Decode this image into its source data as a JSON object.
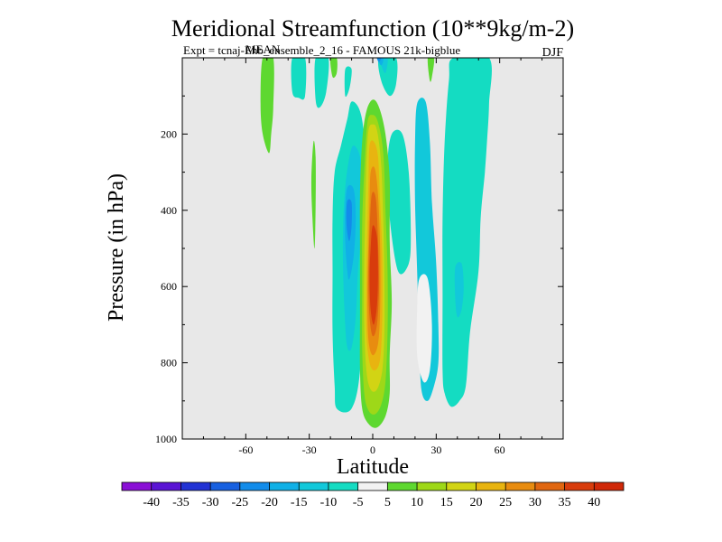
{
  "chart_data": {
    "type": "heatmap",
    "title": "Meridional Streamfunction (10**9kg/m-2)",
    "subtitle_left": "Expt = tcnaj-Ehb_ensemble_2_16 - FAMOUS 21k-bigblue",
    "subtitle_overlap": "MEAN",
    "subtitle_right": "DJF",
    "xlabel": "Latitude",
    "ylabel": "Pressure (in hPa)",
    "xlim": [
      -90,
      90
    ],
    "ylim": [
      1000,
      0
    ],
    "xticks": [
      -60,
      -30,
      0,
      30,
      60
    ],
    "xtick_labels": [
      "-60",
      "-30",
      "0",
      "30",
      "60"
    ],
    "yticks": [
      200,
      400,
      600,
      800,
      1000
    ],
    "ytick_labels": [
      "200",
      "400",
      "600",
      "800",
      "1000"
    ],
    "background_color": "#e8e8e8",
    "colorbar": {
      "bins": [
        "#8a10d6",
        "#5a14d4",
        "#2233d4",
        "#1760e0",
        "#128cea",
        "#10b0e6",
        "#12c8da",
        "#14dcc2",
        "#f2f2f2",
        "#5ed830",
        "#9ed818",
        "#d2d414",
        "#e8b410",
        "#e88c10",
        "#e06610",
        "#d83c0c"
      ],
      "labels": [
        "-40",
        "-35",
        "-30",
        "-25",
        "-20",
        "-15",
        "-10",
        "-5",
        "5",
        "10",
        "15",
        "20",
        "25",
        "30",
        "35",
        "40"
      ]
    },
    "contours": [
      {
        "level": 10,
        "color": "#5ed830",
        "points": [
          [
            -52,
            0
          ],
          [
            -47,
            0
          ],
          [
            -47,
            130
          ],
          [
            -48,
            200
          ],
          [
            -49,
            250
          ],
          [
            -52,
            200
          ],
          [
            -53,
            120
          ]
        ]
      },
      {
        "level": -5,
        "color": "#14dcc2",
        "points": [
          [
            -38,
            0
          ],
          [
            -32,
            0
          ],
          [
            -32,
            100
          ],
          [
            -35,
            105
          ],
          [
            -38,
            90
          ]
        ]
      },
      {
        "level": -5,
        "color": "#14dcc2",
        "points": [
          [
            -27,
            0
          ],
          [
            -21,
            0
          ],
          [
            -22,
            90
          ],
          [
            -25,
            130
          ],
          [
            -27,
            110
          ]
        ]
      },
      {
        "level": 10,
        "color": "#5ed830",
        "points": [
          [
            -20,
            0
          ],
          [
            -17,
            0
          ],
          [
            -17,
            40
          ],
          [
            -19,
            50
          ]
        ]
      },
      {
        "level": 10,
        "color": "#5ed830",
        "points": [
          [
            -28,
            220
          ],
          [
            -27,
            260
          ],
          [
            -27,
            390
          ],
          [
            -27.5,
            500
          ],
          [
            -28.5,
            420
          ],
          [
            -29,
            320
          ]
        ]
      },
      {
        "level": 10,
        "color": "#5ed830",
        "points": [
          [
            26,
            0
          ],
          [
            29,
            0
          ],
          [
            28,
            50
          ],
          [
            27,
            60
          ]
        ]
      },
      {
        "level": -5,
        "color": "#14dcc2",
        "points": [
          [
            -13,
            30
          ],
          [
            -10,
            30
          ],
          [
            -11,
            80
          ],
          [
            -13,
            100
          ]
        ]
      },
      {
        "level": -5,
        "color": "#14dcc2",
        "points": [
          [
            3,
            0
          ],
          [
            11,
            0
          ],
          [
            11,
            70
          ],
          [
            8,
            100
          ],
          [
            4,
            60
          ]
        ]
      },
      {
        "level": -10,
        "color": "#12c8da",
        "points": [
          [
            3,
            0
          ],
          [
            7,
            0
          ],
          [
            6,
            40
          ],
          [
            4,
            20
          ]
        ]
      },
      {
        "level": -15,
        "color": "#10b0e6",
        "points": [
          [
            2,
            0
          ],
          [
            5,
            0
          ],
          [
            4,
            20
          ]
        ]
      },
      {
        "level": -20,
        "color": "#128cea",
        "points": [
          [
            2,
            0
          ],
          [
            4,
            0
          ],
          [
            3,
            10
          ]
        ]
      },
      {
        "level": -5,
        "color": "#14dcc2",
        "points": [
          [
            -10,
            115
          ],
          [
            -6,
            140
          ],
          [
            -4,
            220
          ],
          [
            -4,
            380
          ],
          [
            -5,
            600
          ],
          [
            -6,
            820
          ],
          [
            -10,
            920
          ],
          [
            -17,
            920
          ],
          [
            -18,
            860
          ],
          [
            -19,
            720
          ],
          [
            -19,
            560
          ],
          [
            -19,
            420
          ],
          [
            -18,
            300
          ],
          [
            -15,
            230
          ],
          [
            -12,
            160
          ]
        ]
      },
      {
        "level": -5,
        "color": "#14dcc2",
        "points": [
          [
            9,
            200
          ],
          [
            14,
            200
          ],
          [
            17,
            300
          ],
          [
            18,
            460
          ],
          [
            17,
            540
          ],
          [
            12,
            560
          ],
          [
            8,
            420
          ],
          [
            7,
            280
          ]
        ]
      },
      {
        "level": -5,
        "color": "#14dcc2",
        "points": [
          [
            38,
            0
          ],
          [
            55,
            0
          ],
          [
            55,
            120
          ],
          [
            54,
            220
          ],
          [
            53,
            300
          ],
          [
            51,
            420
          ],
          [
            50,
            560
          ],
          [
            46,
            720
          ],
          [
            44,
            860
          ],
          [
            41,
            900
          ],
          [
            37,
            915
          ],
          [
            34,
            880
          ],
          [
            33,
            820
          ],
          [
            33,
            620
          ],
          [
            33,
            420
          ],
          [
            34,
            220
          ],
          [
            36,
            60
          ]
        ]
      },
      {
        "level": -10,
        "color": "#12c8da",
        "points": [
          [
            21,
            120
          ],
          [
            25,
            115
          ],
          [
            27,
            220
          ],
          [
            28,
            380
          ],
          [
            30,
            540
          ],
          [
            31,
            700
          ],
          [
            31,
            800
          ],
          [
            29,
            860
          ],
          [
            26,
            900
          ],
          [
            23,
            870
          ],
          [
            22,
            740
          ],
          [
            21,
            560
          ],
          [
            20,
            380
          ],
          [
            20,
            220
          ]
        ]
      },
      {
        "level": -10,
        "color": "#12c8da",
        "points": [
          [
            -9,
            230
          ],
          [
            -6,
            260
          ],
          [
            -5,
            340
          ],
          [
            -5,
            440
          ],
          [
            -7,
            560
          ],
          [
            -8,
            680
          ],
          [
            -10,
            760
          ],
          [
            -12,
            760
          ],
          [
            -13,
            700
          ],
          [
            -14,
            560
          ],
          [
            -14,
            440
          ],
          [
            -13,
            340
          ],
          [
            -11,
            260
          ]
        ]
      },
      {
        "level": -15,
        "color": "#10b0e6",
        "points": [
          [
            -12,
            340
          ],
          [
            -9,
            345
          ],
          [
            -8,
            420
          ],
          [
            -9,
            520
          ],
          [
            -11,
            580
          ],
          [
            -12,
            560
          ],
          [
            -13,
            480
          ],
          [
            -13,
            400
          ]
        ]
      },
      {
        "level": -20,
        "color": "#128cea",
        "points": [
          [
            -12,
            375
          ],
          [
            -10,
            380
          ],
          [
            -10,
            440
          ],
          [
            -11,
            480
          ],
          [
            -12,
            460
          ],
          [
            -12.5,
            420
          ]
        ]
      },
      {
        "level": -10,
        "color": "#12c8da",
        "points": [
          [
            39,
            550
          ],
          [
            42,
            540
          ],
          [
            43,
            600
          ],
          [
            42,
            660
          ],
          [
            40,
            680
          ],
          [
            39,
            630
          ]
        ]
      },
      {
        "level": 5,
        "color": "#f2f2f2",
        "points": [
          [
            22,
            580
          ],
          [
            26,
            580
          ],
          [
            28,
            700
          ],
          [
            27,
            820
          ],
          [
            24,
            850
          ],
          [
            21,
            780
          ],
          [
            21,
            660
          ]
        ]
      },
      {
        "level": 10,
        "color": "#5ed830",
        "points": [
          [
            -3,
            140
          ],
          [
            0,
            110
          ],
          [
            3,
            130
          ],
          [
            6,
            200
          ],
          [
            8,
            320
          ],
          [
            8,
            480
          ],
          [
            9,
            640
          ],
          [
            8,
            780
          ],
          [
            8,
            880
          ],
          [
            6,
            940
          ],
          [
            2,
            970
          ],
          [
            -2,
            960
          ],
          [
            -5,
            920
          ],
          [
            -6,
            820
          ],
          [
            -6,
            680
          ],
          [
            -6,
            520
          ],
          [
            -6,
            360
          ],
          [
            -5,
            220
          ]
        ]
      },
      {
        "level": 15,
        "color": "#9ed818",
        "points": [
          [
            -2.5,
            170
          ],
          [
            0,
            150
          ],
          [
            2.5,
            170
          ],
          [
            5,
            250
          ],
          [
            6,
            400
          ],
          [
            7,
            560
          ],
          [
            7,
            720
          ],
          [
            6,
            850
          ],
          [
            4,
            910
          ],
          [
            1,
            935
          ],
          [
            -2,
            925
          ],
          [
            -4,
            880
          ],
          [
            -5,
            760
          ],
          [
            -5,
            600
          ],
          [
            -5,
            440
          ],
          [
            -4,
            300
          ]
        ]
      },
      {
        "level": 20,
        "color": "#d2d414",
        "points": [
          [
            -2,
            190
          ],
          [
            0,
            175
          ],
          [
            2,
            190
          ],
          [
            4,
            280
          ],
          [
            5,
            430
          ],
          [
            5.5,
            580
          ],
          [
            5.5,
            720
          ],
          [
            4.5,
            820
          ],
          [
            2,
            870
          ],
          [
            -1,
            870
          ],
          [
            -3,
            820
          ],
          [
            -4,
            700
          ],
          [
            -4,
            540
          ],
          [
            -3.5,
            400
          ],
          [
            -3,
            280
          ]
        ]
      },
      {
        "level": 25,
        "color": "#e8b410",
        "points": [
          [
            -1.5,
            230
          ],
          [
            0.5,
            220
          ],
          [
            2.5,
            260
          ],
          [
            3.5,
            380
          ],
          [
            4.5,
            520
          ],
          [
            4.5,
            680
          ],
          [
            3.5,
            790
          ],
          [
            1,
            820
          ],
          [
            -1.5,
            800
          ],
          [
            -3,
            720
          ],
          [
            -3,
            580
          ],
          [
            -2.5,
            440
          ],
          [
            -2,
            320
          ]
        ]
      },
      {
        "level": 30,
        "color": "#e88c10",
        "points": [
          [
            -1,
            300
          ],
          [
            1,
            290
          ],
          [
            2.5,
            360
          ],
          [
            3.5,
            500
          ],
          [
            3.5,
            660
          ],
          [
            2.5,
            750
          ],
          [
            0,
            780
          ],
          [
            -2,
            740
          ],
          [
            -2.5,
            620
          ],
          [
            -2,
            480
          ],
          [
            -1.5,
            380
          ]
        ]
      },
      {
        "level": 35,
        "color": "#e06610",
        "points": [
          [
            -0.5,
            360
          ],
          [
            1.5,
            370
          ],
          [
            2.5,
            480
          ],
          [
            3,
            600
          ],
          [
            2,
            700
          ],
          [
            0,
            730
          ],
          [
            -1.5,
            680
          ],
          [
            -2,
            580
          ],
          [
            -1.5,
            460
          ]
        ]
      },
      {
        "level": 40,
        "color": "#d83c0c",
        "points": [
          [
            0,
            440
          ],
          [
            2,
            470
          ],
          [
            2.5,
            560
          ],
          [
            2,
            650
          ],
          [
            0.5,
            700
          ],
          [
            -1,
            660
          ],
          [
            -1.5,
            570
          ],
          [
            -1,
            500
          ]
        ]
      }
    ]
  }
}
